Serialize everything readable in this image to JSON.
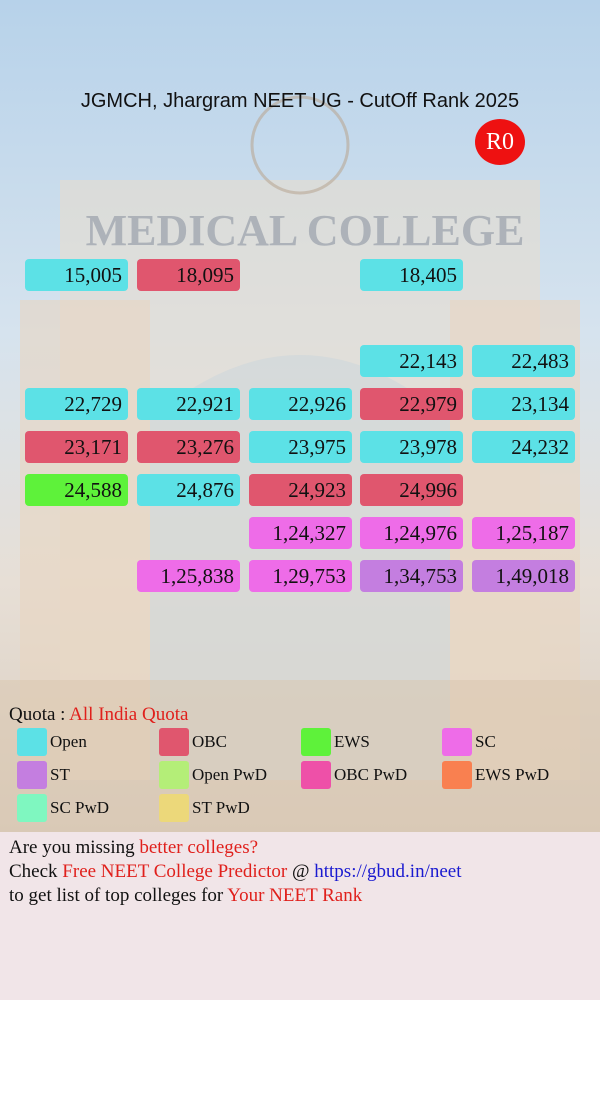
{
  "header": {
    "title": "JGMCH, Jhargram NEET UG - CutOff Rank 2025",
    "badge": "R0"
  },
  "grid": {
    "rows": [
      [
        {
          "text": "15,005",
          "color": "#5ce1e6"
        },
        {
          "text": "18,095",
          "color": "#e0566e"
        },
        null,
        {
          "text": "18,405",
          "color": "#5ce1e6"
        },
        null
      ],
      [
        null,
        null,
        null,
        null,
        null
      ],
      [
        null,
        null,
        null,
        {
          "text": "22,143",
          "color": "#5ce1e6"
        },
        {
          "text": "22,483",
          "color": "#5ce1e6"
        }
      ],
      [
        {
          "text": "22,729",
          "color": "#5ce1e6"
        },
        {
          "text": "22,921",
          "color": "#5ce1e6"
        },
        {
          "text": "22,926",
          "color": "#5ce1e6"
        },
        {
          "text": "22,979",
          "color": "#e0566e"
        },
        {
          "text": "23,134",
          "color": "#5ce1e6"
        }
      ],
      [
        {
          "text": "23,171",
          "color": "#e0566e"
        },
        {
          "text": "23,276",
          "color": "#e0566e"
        },
        {
          "text": "23,975",
          "color": "#5ce1e6"
        },
        {
          "text": "23,978",
          "color": "#5ce1e6"
        },
        {
          "text": "24,232",
          "color": "#5ce1e6"
        }
      ],
      [
        {
          "text": "24,588",
          "color": "#5ef23a"
        },
        {
          "text": "24,876",
          "color": "#5ce1e6"
        },
        {
          "text": "24,923",
          "color": "#e0566e"
        },
        {
          "text": "24,996",
          "color": "#e0566e"
        },
        null
      ],
      [
        null,
        null,
        {
          "text": "1,24,327",
          "color": "#ee6ce8"
        },
        {
          "text": "1,24,976",
          "color": "#ee6ce8"
        },
        {
          "text": "1,25,187",
          "color": "#ee6ce8"
        }
      ],
      [
        null,
        {
          "text": "1,25,838",
          "color": "#ee6ce8"
        },
        {
          "text": "1,29,753",
          "color": "#ee6ce8"
        },
        {
          "text": "1,34,753",
          "color": "#c47ee0"
        },
        {
          "text": "1,49,018",
          "color": "#c47ee0"
        }
      ]
    ]
  },
  "quota": {
    "label": "Quota :",
    "value": "All India Quota"
  },
  "legend": [
    {
      "label": "Open",
      "color": "#5ce1e6"
    },
    {
      "label": "OBC",
      "color": "#e0566e"
    },
    {
      "label": "EWS",
      "color": "#5ef23a"
    },
    {
      "label": "SC",
      "color": "#ee6ce8"
    },
    {
      "label": "ST",
      "color": "#c47ee0"
    },
    {
      "label": "Open PwD",
      "color": "#b4ee78"
    },
    {
      "label": "OBC PwD",
      "color": "#ee50a8"
    },
    {
      "label": "EWS PwD",
      "color": "#f98050"
    },
    {
      "label": "SC PwD",
      "color": "#7ff7c0"
    },
    {
      "label": "ST PwD",
      "color": "#ecd87a"
    }
  ],
  "footer": {
    "lines": [
      [
        {
          "text": "Are you missing ",
          "color": "#111111"
        },
        {
          "text": "better colleges?",
          "color": "#e0201c"
        }
      ],
      [
        {
          "text": "Check ",
          "color": "#111111"
        },
        {
          "text": "Free NEET College Predictor",
          "color": "#e0201c"
        },
        {
          "text": " @ ",
          "color": "#111111"
        },
        {
          "text": "https://gbud.in/neet",
          "color": "#1a1ad0"
        }
      ],
      [
        {
          "text": "to get list of top colleges for ",
          "color": "#111111"
        },
        {
          "text": "Your NEET Rank",
          "color": "#e0201c"
        }
      ]
    ]
  }
}
